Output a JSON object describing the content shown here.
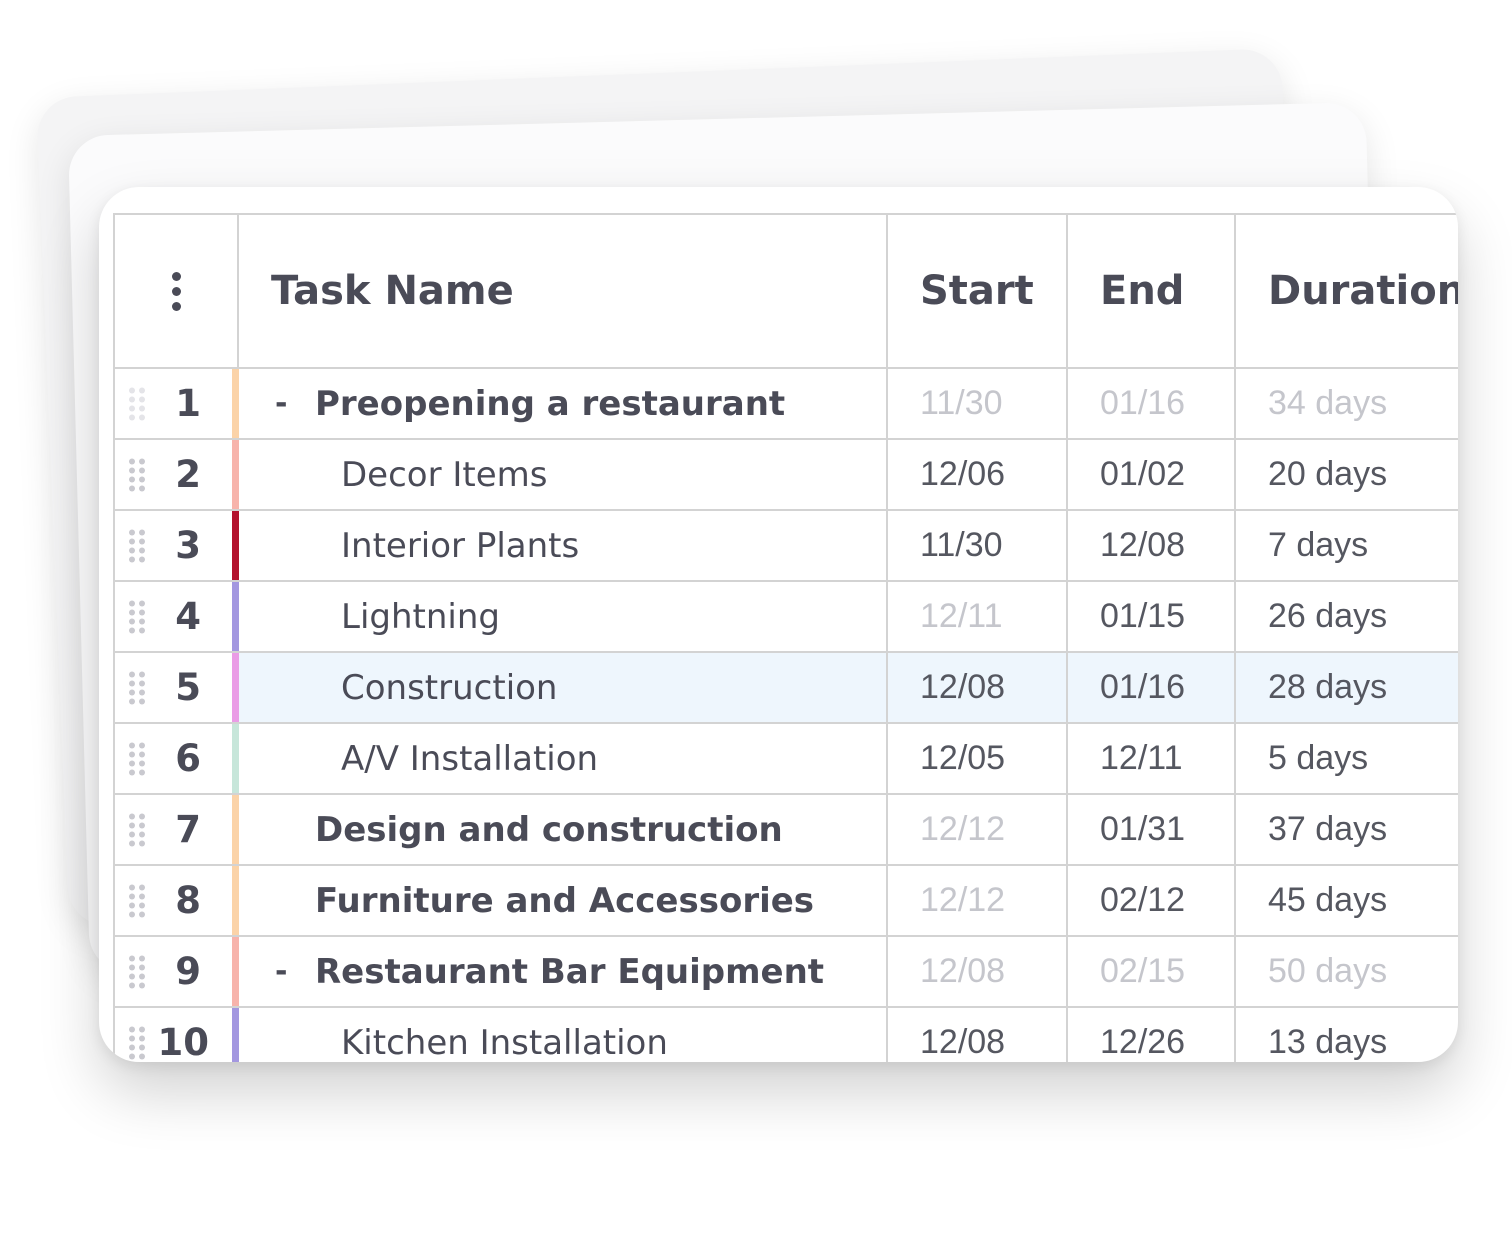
{
  "grid": {
    "columns": {
      "task_name": "Task Name",
      "start": "Start",
      "end": "End",
      "duration": "Duration"
    },
    "menu_icon": "kebab-menu-icon",
    "rows": [
      {
        "index": "1",
        "name": "Preopening a restaurant",
        "start": "11/30",
        "end": "01/16",
        "duration": "34 days",
        "color": "#fbd3a8",
        "level": "parent-expanded",
        "muted_start": true,
        "muted_end": true,
        "muted_duration": true,
        "selected": false
      },
      {
        "index": "2",
        "name": "Decor Items",
        "start": "12/06",
        "end": "01/02",
        "duration": "20 days",
        "color": "#f7b3ab",
        "level": "child",
        "muted_start": false,
        "muted_end": false,
        "muted_duration": false,
        "selected": false
      },
      {
        "index": "3",
        "name": "Interior Plants",
        "start": "11/30",
        "end": "12/08",
        "duration": "7 days",
        "color": "#b3122e",
        "level": "child",
        "muted_start": false,
        "muted_end": false,
        "muted_duration": false,
        "selected": false
      },
      {
        "index": "4",
        "name": "Lightning",
        "start": "12/11",
        "end": "01/15",
        "duration": "26 days",
        "color": "#a397e0",
        "level": "child",
        "muted_start": true,
        "muted_end": false,
        "muted_duration": false,
        "selected": false
      },
      {
        "index": "5",
        "name": "Construction",
        "start": "12/08",
        "end": "01/16",
        "duration": "28 days",
        "color": "#ea9ce6",
        "level": "child",
        "muted_start": false,
        "muted_end": false,
        "muted_duration": false,
        "selected": true
      },
      {
        "index": "6",
        "name": "A/V Installation",
        "start": "12/05",
        "end": "12/11",
        "duration": "5 days",
        "color": "#c7e6da",
        "level": "child",
        "muted_start": false,
        "muted_end": false,
        "muted_duration": false,
        "selected": false
      },
      {
        "index": "7",
        "name": "Design and construction",
        "start": "12/12",
        "end": "01/31",
        "duration": "37 days",
        "color": "#fbd3a8",
        "level": "parent-collapsed",
        "muted_start": true,
        "muted_end": false,
        "muted_duration": false,
        "selected": false
      },
      {
        "index": "8",
        "name": "Furniture and Accessories",
        "start": "12/12",
        "end": "02/12",
        "duration": "45 days",
        "color": "#fbd3a8",
        "level": "parent-collapsed",
        "muted_start": true,
        "muted_end": false,
        "muted_duration": false,
        "selected": false
      },
      {
        "index": "9",
        "name": "Restaurant Bar Equipment",
        "start": "12/08",
        "end": "02/15",
        "duration": "50 days",
        "color": "#f7b3ab",
        "level": "parent-expanded",
        "muted_start": true,
        "muted_end": true,
        "muted_duration": true,
        "selected": false
      },
      {
        "index": "10",
        "name": "Kitchen Installation",
        "start": "12/08",
        "end": "12/26",
        "duration": "13 days",
        "color": "#a397e0",
        "level": "child",
        "muted_start": false,
        "muted_end": false,
        "muted_duration": false,
        "selected": false
      }
    ],
    "collapse_symbol": "-"
  }
}
